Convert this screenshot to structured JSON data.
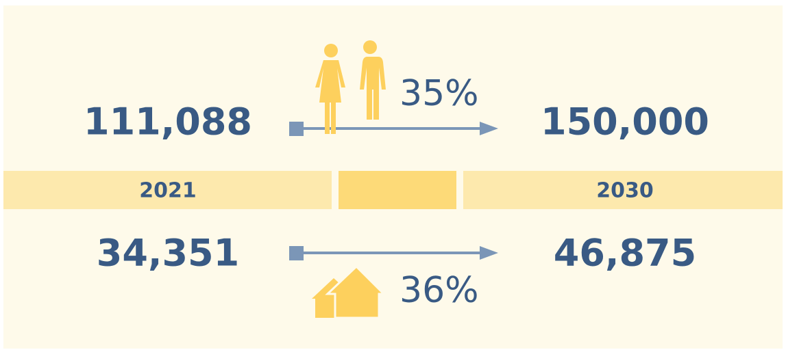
{
  "years": {
    "start": "2021",
    "end": "2030"
  },
  "population": {
    "start": "111,088",
    "end": "150,000",
    "change": "35%"
  },
  "households": {
    "start": "34,351",
    "end": "46,875",
    "change": "36%"
  }
}
